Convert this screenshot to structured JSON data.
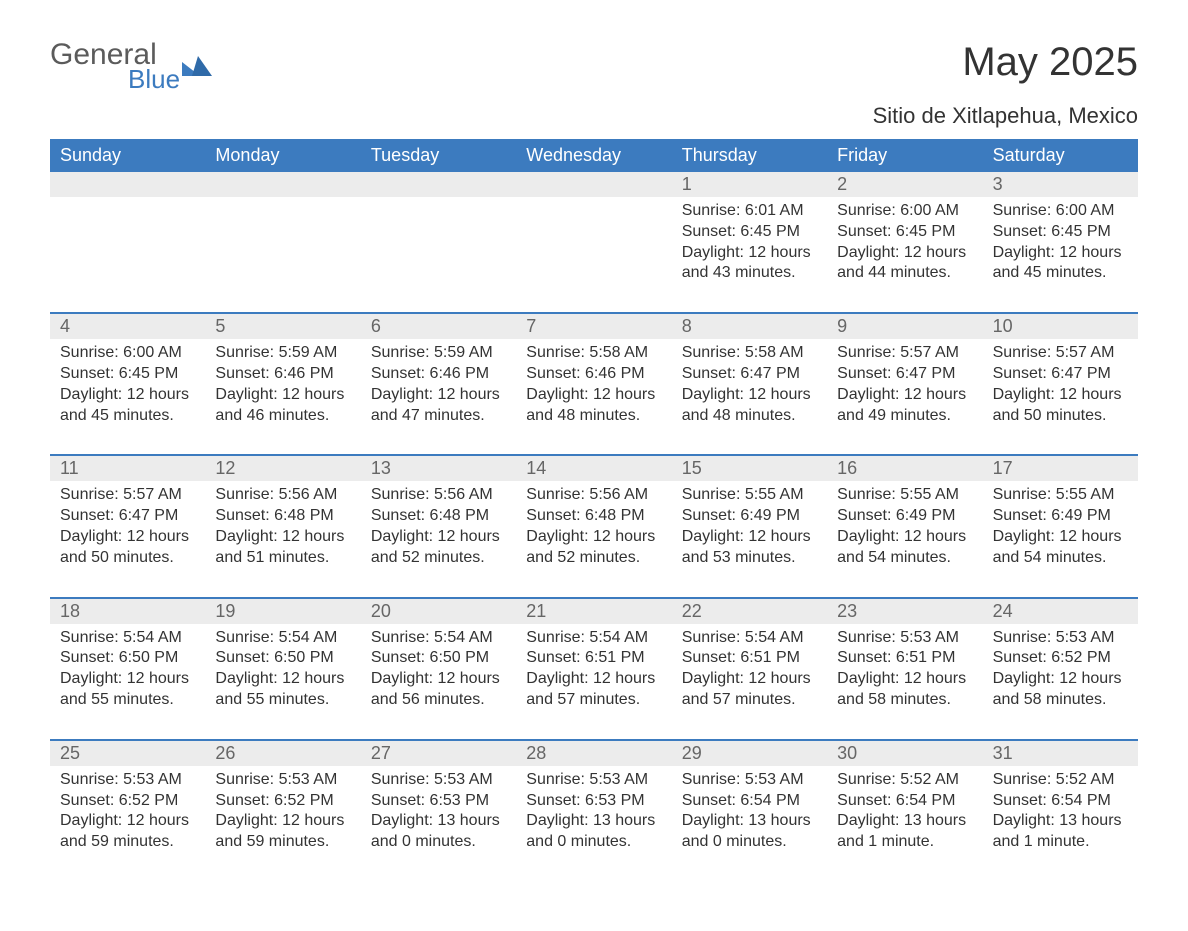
{
  "brand": {
    "name1": "General",
    "name2": "Blue",
    "text_color": "#5b5b5b",
    "accent_color": "#3c7bbf"
  },
  "header": {
    "title": "May 2025",
    "location": "Sitio de Xitlapehua, Mexico"
  },
  "colors": {
    "header_bg": "#3c7bbf",
    "header_text": "#ffffff",
    "daynum_bg": "#ececec",
    "daynum_text": "#666666",
    "body_text": "#333333",
    "divider": "#3c7bbf",
    "page_bg": "#ffffff"
  },
  "weekdays": [
    "Sunday",
    "Monday",
    "Tuesday",
    "Wednesday",
    "Thursday",
    "Friday",
    "Saturday"
  ],
  "weeks": [
    [
      {
        "n": "",
        "sunrise": "",
        "sunset": "",
        "daylight1": "",
        "daylight2": ""
      },
      {
        "n": "",
        "sunrise": "",
        "sunset": "",
        "daylight1": "",
        "daylight2": ""
      },
      {
        "n": "",
        "sunrise": "",
        "sunset": "",
        "daylight1": "",
        "daylight2": ""
      },
      {
        "n": "",
        "sunrise": "",
        "sunset": "",
        "daylight1": "",
        "daylight2": ""
      },
      {
        "n": "1",
        "sunrise": "Sunrise: 6:01 AM",
        "sunset": "Sunset: 6:45 PM",
        "daylight1": "Daylight: 12 hours",
        "daylight2": "and 43 minutes."
      },
      {
        "n": "2",
        "sunrise": "Sunrise: 6:00 AM",
        "sunset": "Sunset: 6:45 PM",
        "daylight1": "Daylight: 12 hours",
        "daylight2": "and 44 minutes."
      },
      {
        "n": "3",
        "sunrise": "Sunrise: 6:00 AM",
        "sunset": "Sunset: 6:45 PM",
        "daylight1": "Daylight: 12 hours",
        "daylight2": "and 45 minutes."
      }
    ],
    [
      {
        "n": "4",
        "sunrise": "Sunrise: 6:00 AM",
        "sunset": "Sunset: 6:45 PM",
        "daylight1": "Daylight: 12 hours",
        "daylight2": "and 45 minutes."
      },
      {
        "n": "5",
        "sunrise": "Sunrise: 5:59 AM",
        "sunset": "Sunset: 6:46 PM",
        "daylight1": "Daylight: 12 hours",
        "daylight2": "and 46 minutes."
      },
      {
        "n": "6",
        "sunrise": "Sunrise: 5:59 AM",
        "sunset": "Sunset: 6:46 PM",
        "daylight1": "Daylight: 12 hours",
        "daylight2": "and 47 minutes."
      },
      {
        "n": "7",
        "sunrise": "Sunrise: 5:58 AM",
        "sunset": "Sunset: 6:46 PM",
        "daylight1": "Daylight: 12 hours",
        "daylight2": "and 48 minutes."
      },
      {
        "n": "8",
        "sunrise": "Sunrise: 5:58 AM",
        "sunset": "Sunset: 6:47 PM",
        "daylight1": "Daylight: 12 hours",
        "daylight2": "and 48 minutes."
      },
      {
        "n": "9",
        "sunrise": "Sunrise: 5:57 AM",
        "sunset": "Sunset: 6:47 PM",
        "daylight1": "Daylight: 12 hours",
        "daylight2": "and 49 minutes."
      },
      {
        "n": "10",
        "sunrise": "Sunrise: 5:57 AM",
        "sunset": "Sunset: 6:47 PM",
        "daylight1": "Daylight: 12 hours",
        "daylight2": "and 50 minutes."
      }
    ],
    [
      {
        "n": "11",
        "sunrise": "Sunrise: 5:57 AM",
        "sunset": "Sunset: 6:47 PM",
        "daylight1": "Daylight: 12 hours",
        "daylight2": "and 50 minutes."
      },
      {
        "n": "12",
        "sunrise": "Sunrise: 5:56 AM",
        "sunset": "Sunset: 6:48 PM",
        "daylight1": "Daylight: 12 hours",
        "daylight2": "and 51 minutes."
      },
      {
        "n": "13",
        "sunrise": "Sunrise: 5:56 AM",
        "sunset": "Sunset: 6:48 PM",
        "daylight1": "Daylight: 12 hours",
        "daylight2": "and 52 minutes."
      },
      {
        "n": "14",
        "sunrise": "Sunrise: 5:56 AM",
        "sunset": "Sunset: 6:48 PM",
        "daylight1": "Daylight: 12 hours",
        "daylight2": "and 52 minutes."
      },
      {
        "n": "15",
        "sunrise": "Sunrise: 5:55 AM",
        "sunset": "Sunset: 6:49 PM",
        "daylight1": "Daylight: 12 hours",
        "daylight2": "and 53 minutes."
      },
      {
        "n": "16",
        "sunrise": "Sunrise: 5:55 AM",
        "sunset": "Sunset: 6:49 PM",
        "daylight1": "Daylight: 12 hours",
        "daylight2": "and 54 minutes."
      },
      {
        "n": "17",
        "sunrise": "Sunrise: 5:55 AM",
        "sunset": "Sunset: 6:49 PM",
        "daylight1": "Daylight: 12 hours",
        "daylight2": "and 54 minutes."
      }
    ],
    [
      {
        "n": "18",
        "sunrise": "Sunrise: 5:54 AM",
        "sunset": "Sunset: 6:50 PM",
        "daylight1": "Daylight: 12 hours",
        "daylight2": "and 55 minutes."
      },
      {
        "n": "19",
        "sunrise": "Sunrise: 5:54 AM",
        "sunset": "Sunset: 6:50 PM",
        "daylight1": "Daylight: 12 hours",
        "daylight2": "and 55 minutes."
      },
      {
        "n": "20",
        "sunrise": "Sunrise: 5:54 AM",
        "sunset": "Sunset: 6:50 PM",
        "daylight1": "Daylight: 12 hours",
        "daylight2": "and 56 minutes."
      },
      {
        "n": "21",
        "sunrise": "Sunrise: 5:54 AM",
        "sunset": "Sunset: 6:51 PM",
        "daylight1": "Daylight: 12 hours",
        "daylight2": "and 57 minutes."
      },
      {
        "n": "22",
        "sunrise": "Sunrise: 5:54 AM",
        "sunset": "Sunset: 6:51 PM",
        "daylight1": "Daylight: 12 hours",
        "daylight2": "and 57 minutes."
      },
      {
        "n": "23",
        "sunrise": "Sunrise: 5:53 AM",
        "sunset": "Sunset: 6:51 PM",
        "daylight1": "Daylight: 12 hours",
        "daylight2": "and 58 minutes."
      },
      {
        "n": "24",
        "sunrise": "Sunrise: 5:53 AM",
        "sunset": "Sunset: 6:52 PM",
        "daylight1": "Daylight: 12 hours",
        "daylight2": "and 58 minutes."
      }
    ],
    [
      {
        "n": "25",
        "sunrise": "Sunrise: 5:53 AM",
        "sunset": "Sunset: 6:52 PM",
        "daylight1": "Daylight: 12 hours",
        "daylight2": "and 59 minutes."
      },
      {
        "n": "26",
        "sunrise": "Sunrise: 5:53 AM",
        "sunset": "Sunset: 6:52 PM",
        "daylight1": "Daylight: 12 hours",
        "daylight2": "and 59 minutes."
      },
      {
        "n": "27",
        "sunrise": "Sunrise: 5:53 AM",
        "sunset": "Sunset: 6:53 PM",
        "daylight1": "Daylight: 13 hours",
        "daylight2": "and 0 minutes."
      },
      {
        "n": "28",
        "sunrise": "Sunrise: 5:53 AM",
        "sunset": "Sunset: 6:53 PM",
        "daylight1": "Daylight: 13 hours",
        "daylight2": "and 0 minutes."
      },
      {
        "n": "29",
        "sunrise": "Sunrise: 5:53 AM",
        "sunset": "Sunset: 6:54 PM",
        "daylight1": "Daylight: 13 hours",
        "daylight2": "and 0 minutes."
      },
      {
        "n": "30",
        "sunrise": "Sunrise: 5:52 AM",
        "sunset": "Sunset: 6:54 PM",
        "daylight1": "Daylight: 13 hours",
        "daylight2": "and 1 minute."
      },
      {
        "n": "31",
        "sunrise": "Sunrise: 5:52 AM",
        "sunset": "Sunset: 6:54 PM",
        "daylight1": "Daylight: 13 hours",
        "daylight2": "and 1 minute."
      }
    ]
  ]
}
